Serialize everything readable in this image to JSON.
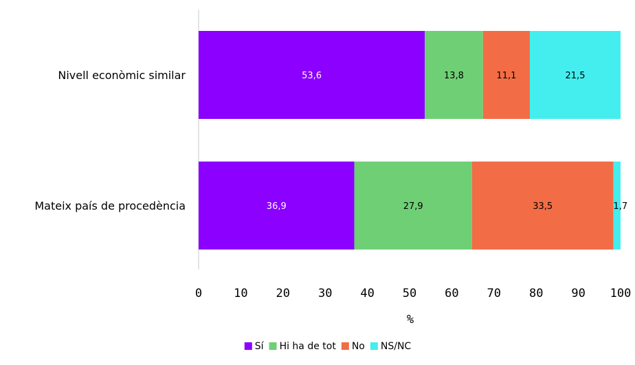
{
  "chart_data": {
    "type": "bar",
    "orientation": "horizontal",
    "stacked": true,
    "categories": [
      "Nivell econòmic similar",
      "Mateix país de procedència"
    ],
    "series": [
      {
        "name": "Sí",
        "color": "#8B00FF",
        "label_color": "#ffffff",
        "values": [
          53.6,
          36.9
        ],
        "labels": [
          "53,6",
          "36,9"
        ]
      },
      {
        "name": "Hi ha de tot",
        "color": "#6FCF75",
        "label_color": "#000000",
        "values": [
          13.8,
          27.9
        ],
        "labels": [
          "13,8",
          "27,9"
        ]
      },
      {
        "name": "No",
        "color": "#F26D45",
        "label_color": "#000000",
        "values": [
          11.1,
          33.5
        ],
        "labels": [
          "11,1",
          "33,5"
        ]
      },
      {
        "name": "NS/NC",
        "color": "#45EEEE",
        "label_color": "#000000",
        "values": [
          21.5,
          1.7
        ],
        "labels": [
          "21,5",
          "1,7"
        ]
      }
    ],
    "xlabel": "%",
    "xlim": [
      0,
      100
    ],
    "xticks": [
      "0",
      "10",
      "20",
      "30",
      "40",
      "50",
      "60",
      "70",
      "80",
      "90",
      "100"
    ],
    "legend_position": "bottom",
    "grid": false
  }
}
